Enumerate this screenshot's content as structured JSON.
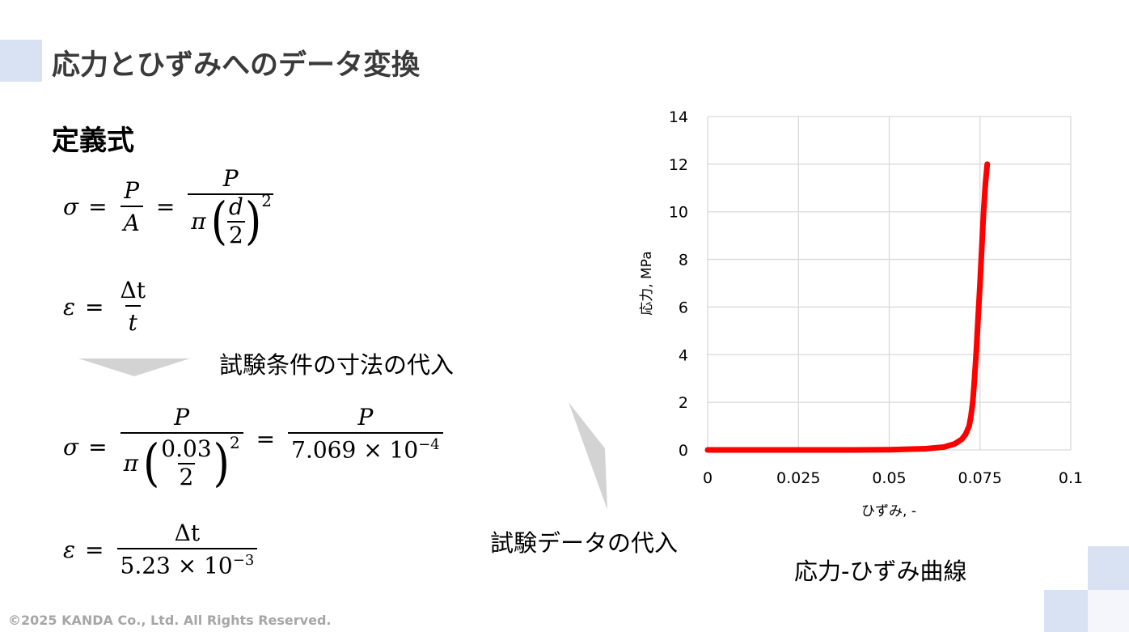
{
  "slide": {
    "title": "応力とひずみへのデータ変換",
    "section_heading": "定義式",
    "colors": {
      "accent_block": "#d9e2f2",
      "title_text": "#3a3a3a",
      "curve": "#ff0000",
      "arrow": "#d3d3d3",
      "footer_text": "#a6a6a6",
      "grid": "#d9d9d9"
    }
  },
  "definitions": {
    "stress": {
      "lhs": "σ",
      "eq": "=",
      "frac1_num": "P",
      "frac1_den": "A",
      "eq2": "=",
      "frac2_num": "P",
      "pi": "π",
      "inner_num": "d",
      "inner_den": "2",
      "exponent": "2"
    },
    "strain": {
      "lhs": "ε",
      "eq": "=",
      "num": "Δt",
      "den": "t"
    }
  },
  "step1_label": "試験条件の寸法の代入",
  "substituted": {
    "stress": {
      "lhs": "σ",
      "eq": "=",
      "frac1_num": "P",
      "pi": "π",
      "inner_num": "0.03",
      "inner_den": "2",
      "exponent": "2",
      "eq2": "=",
      "frac2_num": "P",
      "frac2_den_mantissa": "7.069 × 10",
      "frac2_den_exp": "−4"
    },
    "strain": {
      "lhs": "ε",
      "eq": "=",
      "num": "Δt",
      "den_mantissa": "5.23 × 10",
      "den_exp": "−3"
    }
  },
  "step2_label": "試験データの代入",
  "chart_caption": "応力-ひずみ曲線",
  "footer": "©2025 KANDA Co., Ltd. All Rights Reserved.",
  "chart_data": {
    "type": "scatter",
    "title": "",
    "xlabel": "ひずみ, -",
    "ylabel": "応力, MPa",
    "xlim": [
      0,
      0.1
    ],
    "ylim": [
      0,
      14
    ],
    "x_ticks": [
      "0",
      "0.025",
      "0.05",
      "0.075",
      "0.1"
    ],
    "y_ticks": [
      "0",
      "2",
      "4",
      "6",
      "8",
      "10",
      "12",
      "14"
    ],
    "grid": true,
    "legend": "none",
    "series": [
      {
        "name": "応力-ひずみ",
        "color": "#ff0000",
        "x": [
          0,
          0.01,
          0.02,
          0.03,
          0.04,
          0.05,
          0.06,
          0.065,
          0.068,
          0.07,
          0.071,
          0.072,
          0.0725,
          0.073,
          0.0735,
          0.074,
          0.0745,
          0.075,
          0.0755,
          0.076,
          0.0765,
          0.077
        ],
        "y": [
          0,
          0,
          0,
          0,
          0,
          0.01,
          0.05,
          0.12,
          0.25,
          0.45,
          0.65,
          1.0,
          1.4,
          2.0,
          3.0,
          4.2,
          5.6,
          7.0,
          8.5,
          10.0,
          11.2,
          12.0
        ]
      }
    ]
  }
}
